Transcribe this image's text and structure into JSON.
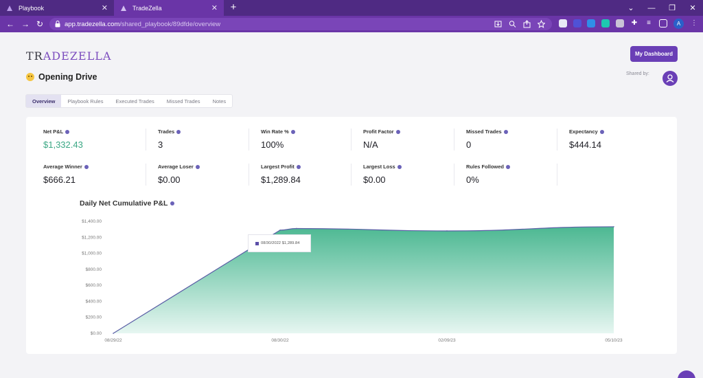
{
  "browser": {
    "tabs": [
      {
        "label": "Playbook",
        "active": false
      },
      {
        "label": "TradeZella",
        "active": true
      }
    ],
    "url_host": "app.tradezella.com",
    "url_path": "/shared_playbook/89dfde/overview",
    "profile_initial": "A"
  },
  "app": {
    "logo_left": "TR",
    "logo_accent": "A",
    "logo_right": "DEZELLA",
    "dashboard_button": "My Dashboard",
    "page_title": "Opening Drive",
    "shared_by_label": "Shared by:",
    "tabs": [
      "Overview",
      "Playbook Rules",
      "Executed Trades",
      "Missed Trades",
      "Notes"
    ],
    "active_tab": "Overview"
  },
  "stats": {
    "row1": [
      {
        "label": "Net P&L",
        "value": "$1,332.43"
      },
      {
        "label": "Trades",
        "value": "3"
      },
      {
        "label": "Win Rate %",
        "value": "100%"
      },
      {
        "label": "Profit Factor",
        "value": "N/A"
      },
      {
        "label": "Missed Trades",
        "value": "0"
      },
      {
        "label": "Expectancy",
        "value": "$444.14"
      }
    ],
    "row2": [
      {
        "label": "Average Winner",
        "value": "$666.21"
      },
      {
        "label": "Average Loser",
        "value": "$0.00"
      },
      {
        "label": "Largest Profit",
        "value": "$1,289.84"
      },
      {
        "label": "Largest Loss",
        "value": "$0.00"
      },
      {
        "label": "Rules Followed",
        "value": "0%"
      }
    ]
  },
  "colors": {
    "positive": "#3aa784",
    "brand": "#6a3fb6",
    "area_top": "#4cb892",
    "area_bottom": "#e6f6f1",
    "line": "#5b5fa6"
  },
  "tooltip": {
    "date": "08/30/2022",
    "value": "$1,289.84"
  },
  "chart_data": {
    "type": "area",
    "title": "Daily Net Cumulative P&L",
    "x_tick_labels": [
      "08/29/22",
      "08/30/22",
      "02/09/23",
      "05/10/23"
    ],
    "y_tick_labels": [
      "$1,400.00",
      "$1,200.00",
      "$1,000.00",
      "$800.00",
      "$600.00",
      "$400.00",
      "$200.00",
      "$0.00"
    ],
    "ylim": [
      0,
      1400
    ],
    "x": [
      "08/29/22",
      "08/30/22",
      "09/15/22",
      "02/09/23",
      "05/10/23"
    ],
    "values": [
      0,
      1290,
      1310,
      1280,
      1332
    ],
    "grid": false,
    "legend": "none"
  }
}
